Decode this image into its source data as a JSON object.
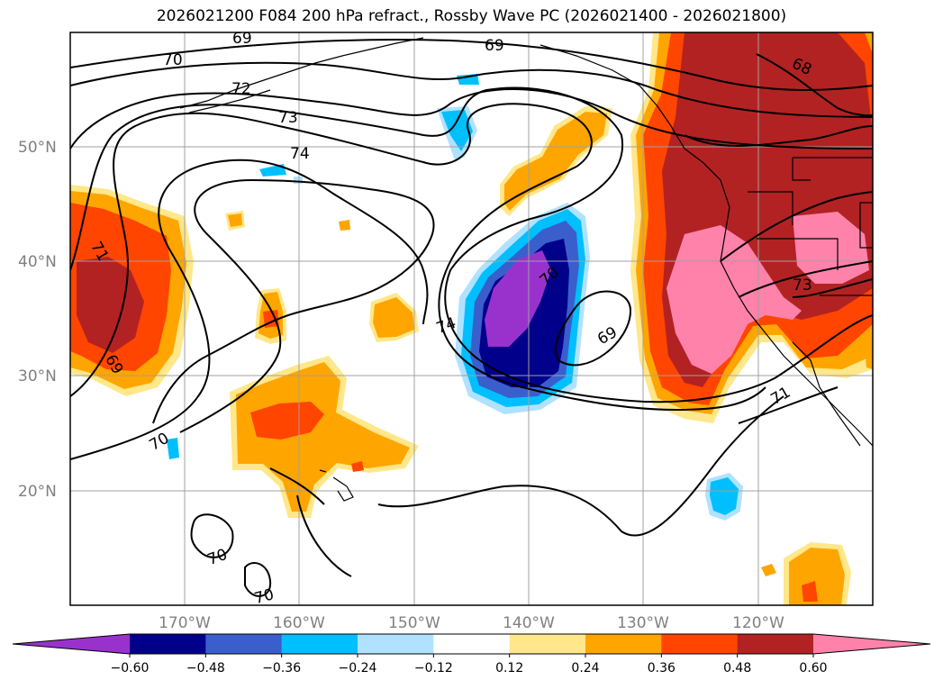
{
  "title": "2026021200 F084 200 hPa refract., Rossby Wave PC (2026021400 - 2026021800)",
  "latitude_labels": [
    "50°N",
    "40°N",
    "30°N",
    "20°N"
  ],
  "longitude_labels": [
    "170°W",
    "160°W",
    "150°W",
    "140°W",
    "130°W",
    "120°W"
  ],
  "contour_labels": [
    "69",
    "69",
    "70",
    "72",
    "73",
    "74",
    "71",
    "69",
    "70",
    "74",
    "69",
    "68",
    "73",
    "71",
    "70",
    "70",
    "70"
  ],
  "colorbar": {
    "ticks": [
      "−0.60",
      "−0.48",
      "−0.36",
      "−0.24",
      "−0.12",
      "0.12",
      "0.24",
      "0.36",
      "0.48",
      "0.60"
    ],
    "colors": [
      "#9932cc",
      "#00008b",
      "#3a5fcd",
      "#00bfff",
      "#b0e2ff",
      "#ffffff",
      "#ffe78a",
      "#ffa500",
      "#ff4500",
      "#b22222",
      "#ff82ab"
    ]
  }
}
